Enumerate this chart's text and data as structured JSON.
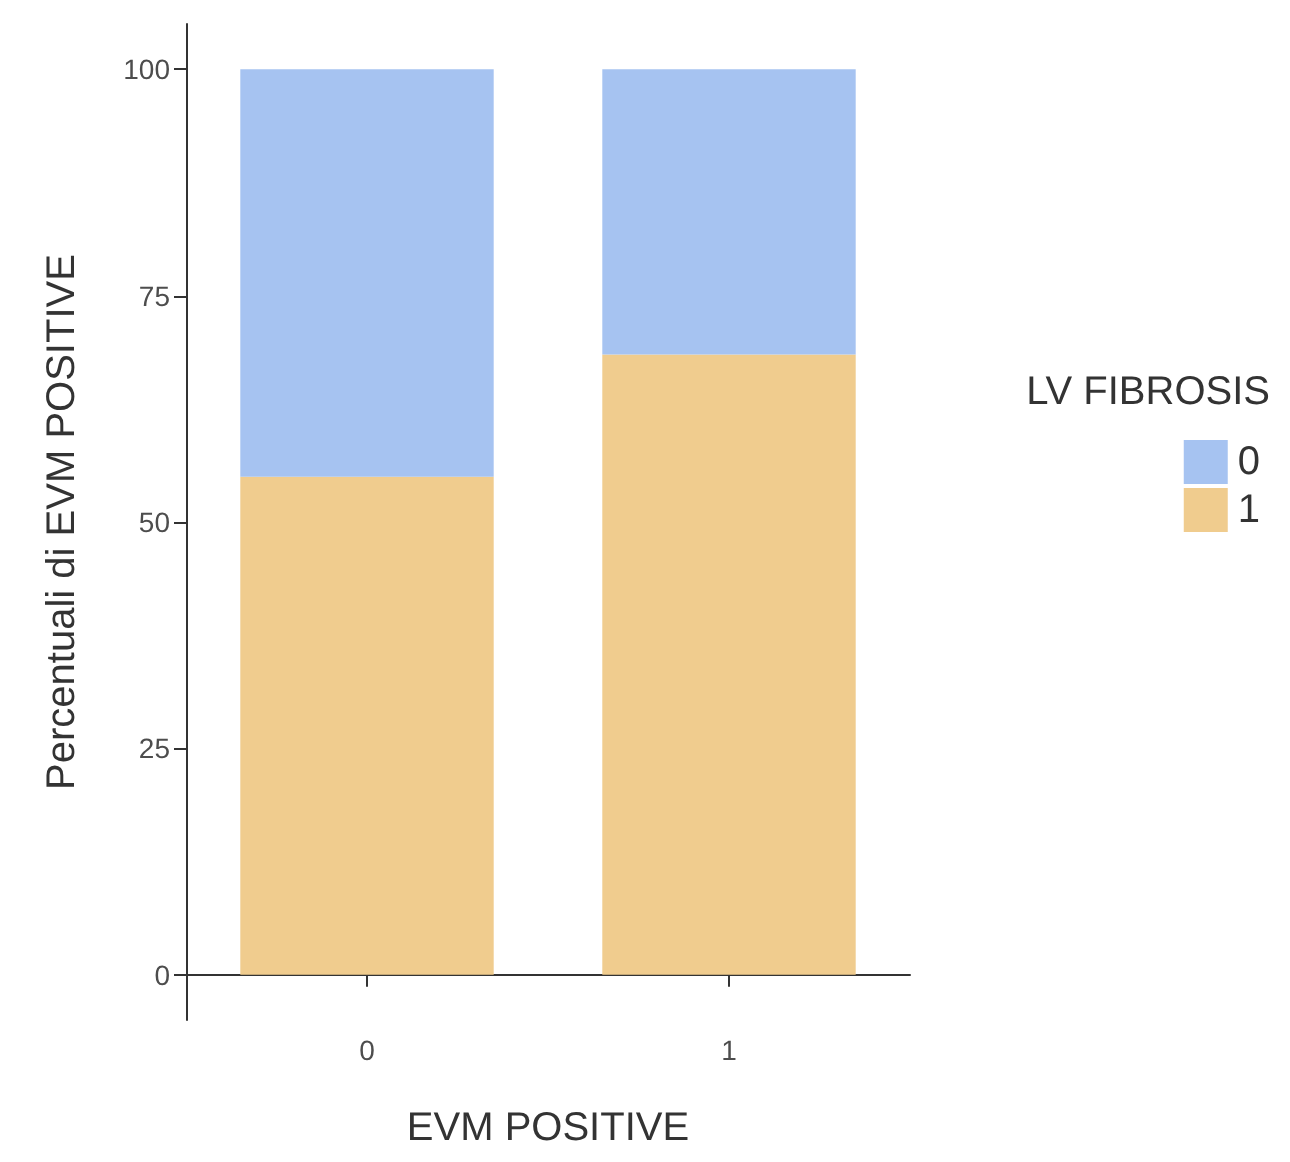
{
  "chart_data": {
    "type": "bar",
    "stacked": true,
    "xlabel": "EVM POSITIVE",
    "ylabel": "Percentuali di EVM POSITIVE",
    "legend_title": "LV FIBROSIS",
    "categories": [
      "0",
      "1"
    ],
    "series": [
      {
        "name": "1",
        "color": "#f0cc8e",
        "values": [
          55,
          68.5
        ]
      },
      {
        "name": "0",
        "color": "#a6c3f1",
        "values": [
          45,
          31.5
        ]
      }
    ],
    "ylim": [
      -5,
      105
    ],
    "yticks": [
      0,
      25,
      50,
      75,
      100
    ],
    "grid": false,
    "legend": "right"
  }
}
